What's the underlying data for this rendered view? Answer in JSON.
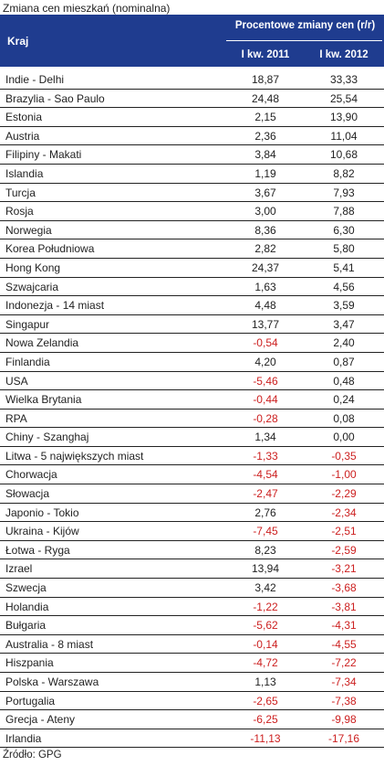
{
  "title": "Zmiana cen mieszkań (nominalna)",
  "header": {
    "country": "Kraj",
    "change": "Procentowe zmiany cen (r/r)",
    "year1": "I kw. 2011",
    "year2": "I kw. 2012"
  },
  "rows": [
    {
      "name": "Indie - Delhi",
      "v1": "18,87",
      "v2": "33,33"
    },
    {
      "name": "Brazylia - Sao Paulo",
      "v1": "24,48",
      "v2": "25,54"
    },
    {
      "name": "Estonia",
      "v1": "2,15",
      "v2": "13,90"
    },
    {
      "name": "Austria",
      "v1": "2,36",
      "v2": "11,04"
    },
    {
      "name": "Filipiny - Makati",
      "v1": "3,84",
      "v2": "10,68"
    },
    {
      "name": "Islandia",
      "v1": "1,19",
      "v2": "8,82"
    },
    {
      "name": "Turcja",
      "v1": "3,67",
      "v2": "7,93"
    },
    {
      "name": "Rosja",
      "v1": "3,00",
      "v2": "7,88"
    },
    {
      "name": "Norwegia",
      "v1": "8,36",
      "v2": "6,30"
    },
    {
      "name": "Korea Południowa",
      "v1": "2,82",
      "v2": "5,80"
    },
    {
      "name": "Hong Kong",
      "v1": "24,37",
      "v2": "5,41"
    },
    {
      "name": "Szwajcaria",
      "v1": "1,63",
      "v2": "4,56"
    },
    {
      "name": "Indonezja - 14 miast",
      "v1": "4,48",
      "v2": "3,59"
    },
    {
      "name": "Singapur",
      "v1": "13,77",
      "v2": "3,47"
    },
    {
      "name": "Nowa Zelandia",
      "v1": "-0,54",
      "v2": "2,40"
    },
    {
      "name": "Finlandia",
      "v1": "4,20",
      "v2": "0,87"
    },
    {
      "name": "USA",
      "v1": "-5,46",
      "v2": "0,48"
    },
    {
      "name": "Wielka Brytania",
      "v1": "-0,44",
      "v2": "0,24"
    },
    {
      "name": "RPA",
      "v1": "-0,28",
      "v2": "0,08"
    },
    {
      "name": "Chiny - Szanghaj",
      "v1": "1,34",
      "v2": "0,00"
    },
    {
      "name": "Litwa - 5 największych miast",
      "v1": "-1,33",
      "v2": "-0,35"
    },
    {
      "name": "Chorwacja",
      "v1": "-4,54",
      "v2": "-1,00"
    },
    {
      "name": "Słowacja",
      "v1": "-2,47",
      "v2": "-2,29"
    },
    {
      "name": "Japonio - Tokio",
      "v1": "2,76",
      "v2": "-2,34"
    },
    {
      "name": "Ukraina - Kijów",
      "v1": "-7,45",
      "v2": "-2,51"
    },
    {
      "name": "Łotwa - Ryga",
      "v1": "8,23",
      "v2": "-2,59"
    },
    {
      "name": "Izrael",
      "v1": "13,94",
      "v2": "-3,21"
    },
    {
      "name": "Szwecja",
      "v1": "3,42",
      "v2": "-3,68"
    },
    {
      "name": "Holandia",
      "v1": "-1,22",
      "v2": "-3,81"
    },
    {
      "name": "Bułgaria",
      "v1": "-5,62",
      "v2": "-4,31"
    },
    {
      "name": "Australia - 8 miast",
      "v1": "-0,14",
      "v2": "-4,55"
    },
    {
      "name": "Hiszpania",
      "v1": "-4,72",
      "v2": "-7,22"
    },
    {
      "name": "Polska - Warszawa",
      "v1": "1,13",
      "v2": "-7,34"
    },
    {
      "name": "Portugalia",
      "v1": "-2,65",
      "v2": "-7,38"
    },
    {
      "name": "Grecja - Ateny",
      "v1": "-6,25",
      "v2": "-9,98"
    },
    {
      "name": "Irlandia",
      "v1": "-11,13",
      "v2": "-17,16"
    }
  ],
  "source": "Źródło: GPG",
  "colors": {
    "header_bg": "#1f3c8f",
    "negative": "#cc1f1f"
  }
}
